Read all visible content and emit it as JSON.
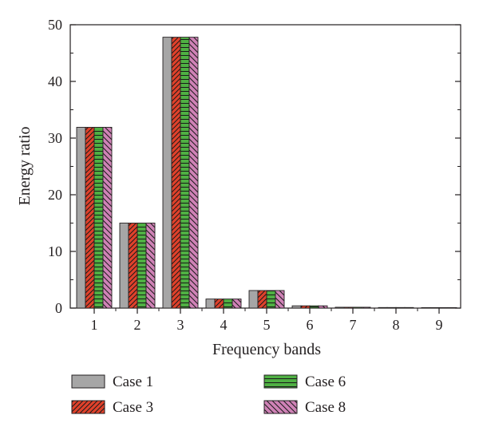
{
  "chart_data": {
    "type": "bar",
    "title": "",
    "xlabel": "Frequency bands",
    "ylabel": "Energy ratio",
    "categories": [
      "1",
      "2",
      "3",
      "4",
      "5",
      "6",
      "7",
      "8",
      "9"
    ],
    "ylim": [
      0,
      50
    ],
    "yticks": [
      0,
      10,
      20,
      30,
      40,
      50
    ],
    "grid": false,
    "legend_position": "bottom",
    "series": [
      {
        "name": "Case 1",
        "color": "#a6a6a6",
        "pattern": "solid",
        "values": [
          31.9,
          15.0,
          47.8,
          1.6,
          3.1,
          0.4,
          0.15,
          0.1,
          0.05
        ]
      },
      {
        "name": "Case 3",
        "color": "#e0412b",
        "pattern": "diagonal-hatch",
        "values": [
          31.9,
          15.0,
          47.8,
          1.6,
          3.1,
          0.4,
          0.15,
          0.1,
          0.05
        ]
      },
      {
        "name": "Case 6",
        "color": "#4fb043",
        "pattern": "horizontal-lines",
        "values": [
          31.9,
          15.0,
          47.8,
          1.6,
          3.1,
          0.4,
          0.15,
          0.1,
          0.05
        ]
      },
      {
        "name": "Case 8",
        "color": "#cf82b6",
        "pattern": "backslash-hatch",
        "values": [
          31.9,
          15.0,
          47.8,
          1.6,
          3.1,
          0.4,
          0.15,
          0.1,
          0.05
        ]
      }
    ]
  }
}
